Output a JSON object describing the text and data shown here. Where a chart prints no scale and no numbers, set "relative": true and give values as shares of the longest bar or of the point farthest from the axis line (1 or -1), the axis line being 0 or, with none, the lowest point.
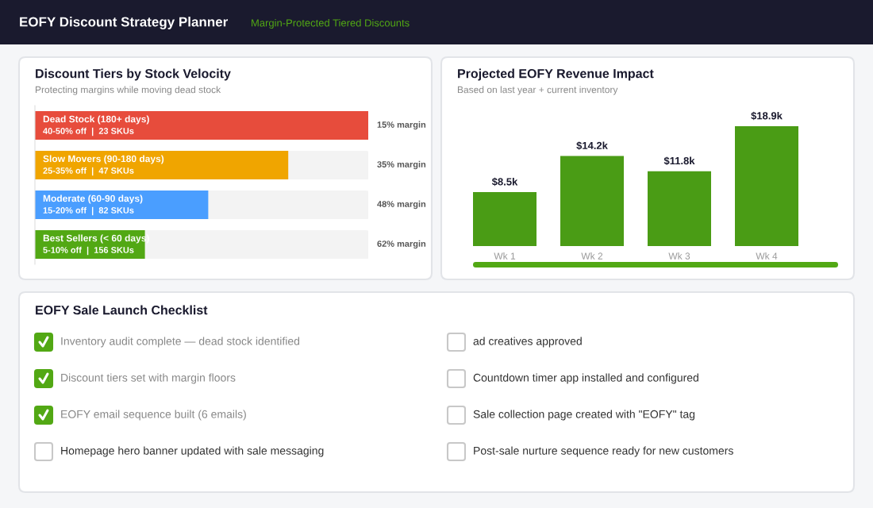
{
  "chart_data": [
    {
      "type": "other",
      "title": "EOFY Discount Strategy Planner",
      "subtitle": "Margin-Protected Tiered Discounts"
    },
    {
      "type": "bar",
      "orientation": "horizontal",
      "relative": true,
      "title": "Discount Tiers by Stock Velocity",
      "subtitle": "Protecting margins while moving dead stock",
      "categories": [
        "Dead Stock (180+ days)",
        "Slow Movers (90-180 days)",
        "Moderate (60-90 days)",
        "Best Sellers (< 60 days)"
      ],
      "values": [
        1,
        0.76,
        0.52,
        0.33
      ],
      "colors": [
        "#e74c3c",
        "#f0a500",
        "#4a9eff",
        "#52a814"
      ],
      "annotations": [
        "40-50% off  |  23 SKUs",
        "25-35% off  |  47 SKUs",
        "15-20% off  |  82 SKUs",
        "5-10% off  |  156 SKUs",
        "15% margin",
        "35% margin",
        "48% margin",
        "62% margin"
      ]
    },
    {
      "type": "bar",
      "title": "Projected EOFY Revenue Impact",
      "subtitle": "Based on last year + current inventory",
      "categories": [
        "Wk 1",
        "Wk 2",
        "Wk 3",
        "Wk 4"
      ],
      "values": [
        8.5,
        14.2,
        11.8,
        18.9
      ],
      "color": "#4a9c15",
      "value_labels": [
        "$8.5k",
        "$14.2k",
        "$11.8k",
        "$18.9k"
      ]
    },
    {
      "type": "other",
      "title": "EOFY Sale Launch Checklist",
      "annotations": [
        "Inventory audit complete — dead stock identified",
        "Discount tiers set with margin floors",
        "EOFY email sequence built (6 emails)",
        "Homepage hero banner updated with sale messaging",
        "ad creatives approved",
        "Countdown timer app installed and configured",
        "Sale collection page created with \"EOFY\" tag",
        "Post-sale nurture sequence ready for new customers"
      ],
      "values": [
        true,
        true,
        true,
        false,
        false,
        false,
        false,
        false
      ]
    }
  ]
}
